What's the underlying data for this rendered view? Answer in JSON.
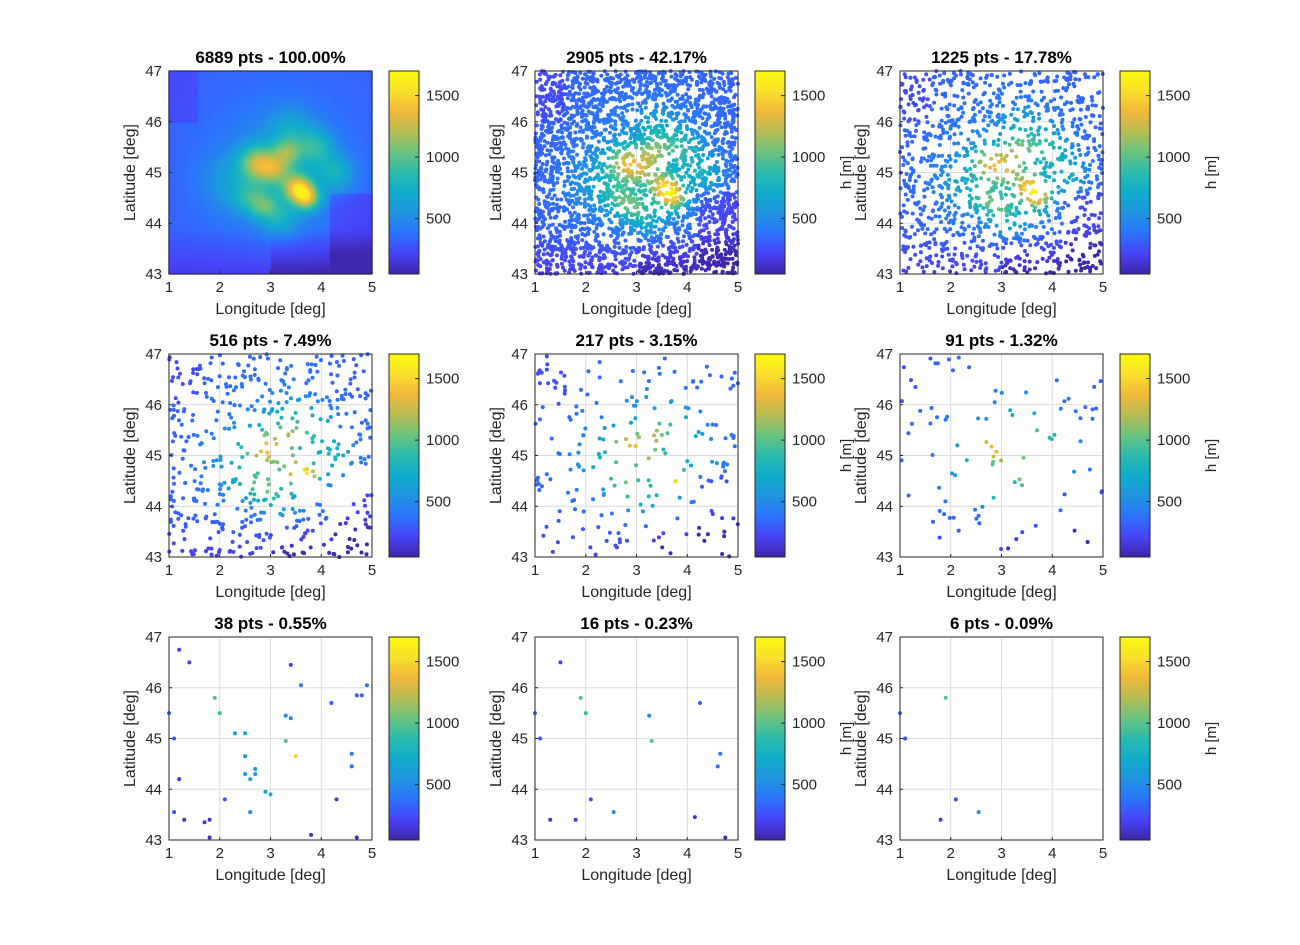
{
  "colors": {
    "background": "#ffffff",
    "colormap": "parula",
    "colormap_stops": [
      "#3e26a8",
      "#4743f8",
      "#2c73fd",
      "#1f94e0",
      "#0fadcb",
      "#2bbbad",
      "#6bc37f",
      "#b6bc53",
      "#f1b83a",
      "#f9e02b",
      "#f9fb0e"
    ]
  },
  "chart_data": [
    {
      "type": "scatter",
      "title": "6889 pts - 100.00%",
      "xlabel": "Longitude [deg]",
      "ylabel": "Latitude [deg]",
      "xlim": [
        1,
        5
      ],
      "ylim": [
        43,
        47
      ],
      "xticks": [
        "1",
        "2",
        "3",
        "4",
        "5"
      ],
      "yticks": [
        "43",
        "44",
        "45",
        "46",
        "47"
      ],
      "grid": true,
      "colorbar": {
        "label": "",
        "clim": [
          50,
          1700
        ],
        "ticks": [
          "500",
          "1000",
          "1500"
        ]
      },
      "points": 6889,
      "marker_size": 2,
      "sampled": true
    },
    {
      "type": "scatter",
      "title": "2905 pts - 42.17%",
      "xlabel": "Longitude [deg]",
      "ylabel": "Latitude [deg]",
      "xlim": [
        1,
        5
      ],
      "ylim": [
        43,
        47
      ],
      "xticks": [
        "1",
        "2",
        "3",
        "4",
        "5"
      ],
      "yticks": [
        "43",
        "44",
        "45",
        "46",
        "47"
      ],
      "grid": true,
      "colorbar": {
        "label": "h [m]",
        "clim": [
          50,
          1700
        ],
        "ticks": [
          "500",
          "1000",
          "1500"
        ]
      },
      "points": 2905,
      "marker_size": 2,
      "sampled": true
    },
    {
      "type": "scatter",
      "title": "1225 pts - 17.78%",
      "xlabel": "Longitude [deg]",
      "ylabel": "Latitude [deg]",
      "xlim": [
        1,
        5
      ],
      "ylim": [
        43,
        47
      ],
      "xticks": [
        "1",
        "2",
        "3",
        "4",
        "5"
      ],
      "yticks": [
        "43",
        "44",
        "45",
        "46",
        "47"
      ],
      "grid": true,
      "colorbar": {
        "label": "h [m]",
        "clim": [
          50,
          1700
        ],
        "ticks": [
          "500",
          "1000",
          "1500"
        ]
      },
      "points": 1225,
      "marker_size": 2,
      "sampled": true
    },
    {
      "type": "scatter",
      "title": "516 pts - 7.49%",
      "xlabel": "Longitude [deg]",
      "ylabel": "Latitude [deg]",
      "xlim": [
        1,
        5
      ],
      "ylim": [
        43,
        47
      ],
      "xticks": [
        "1",
        "2",
        "3",
        "4",
        "5"
      ],
      "yticks": [
        "43",
        "44",
        "45",
        "46",
        "47"
      ],
      "grid": true,
      "colorbar": {
        "label": "",
        "clim": [
          50,
          1700
        ],
        "ticks": [
          "500",
          "1000",
          "1500"
        ]
      },
      "points": 516,
      "marker_size": 2,
      "sampled": true
    },
    {
      "type": "scatter",
      "title": "217 pts - 3.15%",
      "xlabel": "Longitude [deg]",
      "ylabel": "Latitude [deg]",
      "xlim": [
        1,
        5
      ],
      "ylim": [
        43,
        47
      ],
      "xticks": [
        "1",
        "2",
        "3",
        "4",
        "5"
      ],
      "yticks": [
        "43",
        "44",
        "45",
        "46",
        "47"
      ],
      "grid": true,
      "colorbar": {
        "label": "h [m]",
        "clim": [
          50,
          1700
        ],
        "ticks": [
          "500",
          "1000",
          "1500"
        ]
      },
      "points": 217,
      "marker_size": 2,
      "sampled": true
    },
    {
      "type": "scatter",
      "title": "91 pts - 1.32%",
      "xlabel": "Longitude [deg]",
      "ylabel": "Latitude [deg]",
      "xlim": [
        1,
        5
      ],
      "ylim": [
        43,
        47
      ],
      "xticks": [
        "1",
        "2",
        "3",
        "4",
        "5"
      ],
      "yticks": [
        "43",
        "44",
        "45",
        "46",
        "47"
      ],
      "grid": true,
      "colorbar": {
        "label": "h [m]",
        "clim": [
          50,
          1700
        ],
        "ticks": [
          "500",
          "1000",
          "1500"
        ]
      },
      "points": 91,
      "marker_size": 2,
      "sampled": true
    },
    {
      "type": "scatter",
      "title": "38 pts - 0.55%",
      "xlabel": "Longitude [deg]",
      "ylabel": "Latitude [deg]",
      "xlim": [
        1,
        5
      ],
      "ylim": [
        43,
        47
      ],
      "xticks": [
        "1",
        "2",
        "3",
        "4",
        "5"
      ],
      "yticks": [
        "43",
        "44",
        "45",
        "46",
        "47"
      ],
      "grid": true,
      "colorbar": {
        "label": "",
        "clim": [
          50,
          1700
        ],
        "ticks": [
          "500",
          "1000",
          "1500"
        ]
      },
      "points": 38,
      "marker_size": 2,
      "sampled": false,
      "x": [
        1.0,
        1.2,
        1.4,
        1.1,
        1.2,
        1.3,
        1.8,
        1.9,
        2.0,
        2.3,
        1.8,
        2.1,
        2.5,
        2.5,
        2.6,
        2.7,
        2.7,
        2.9,
        3.0,
        2.5,
        3.3,
        3.3,
        3.4,
        3.5,
        3.4,
        3.6,
        3.8,
        4.2,
        4.3,
        4.6,
        4.6,
        4.7,
        4.8,
        4.9,
        4.7,
        1.1,
        1.7,
        2.6
      ],
      "y": [
        45.5,
        46.75,
        46.5,
        45.0,
        44.2,
        43.4,
        43.4,
        45.8,
        45.5,
        45.1,
        43.05,
        43.8,
        44.65,
        44.3,
        44.2,
        44.4,
        44.3,
        43.95,
        43.9,
        45.1,
        45.45,
        44.95,
        46.45,
        44.65,
        45.4,
        46.05,
        43.1,
        45.7,
        43.8,
        44.45,
        44.7,
        43.05,
        45.85,
        46.05,
        45.85,
        43.55,
        43.35,
        43.55
      ],
      "h": [
        380,
        200,
        200,
        250,
        150,
        120,
        120,
        1000,
        900,
        600,
        100,
        250,
        550,
        600,
        700,
        550,
        650,
        600,
        750,
        650,
        500,
        1000,
        200,
        1450,
        450,
        400,
        100,
        300,
        150,
        350,
        400,
        100,
        300,
        400,
        300,
        250,
        150,
        500
      ]
    },
    {
      "type": "scatter",
      "title": "16 pts - 0.23%",
      "xlabel": "Longitude [deg]",
      "ylabel": "Latitude [deg]",
      "xlim": [
        1,
        5
      ],
      "ylim": [
        43,
        47
      ],
      "xticks": [
        "1",
        "2",
        "3",
        "4",
        "5"
      ],
      "yticks": [
        "43",
        "44",
        "45",
        "46",
        "47"
      ],
      "grid": true,
      "colorbar": {
        "label": "h [m]",
        "clim": [
          50,
          1700
        ],
        "ticks": [
          "500",
          "1000",
          "1500"
        ]
      },
      "points": 16,
      "marker_size": 2,
      "sampled": false,
      "x": [
        1.0,
        1.1,
        1.5,
        1.9,
        2.0,
        2.1,
        1.3,
        1.8,
        2.55,
        3.25,
        3.3,
        4.15,
        4.25,
        4.6,
        4.65,
        4.75
      ],
      "y": [
        45.5,
        45.0,
        46.5,
        45.8,
        45.5,
        43.8,
        43.4,
        43.4,
        43.55,
        45.45,
        44.95,
        43.45,
        45.7,
        44.45,
        44.7,
        43.05
      ],
      "h": [
        380,
        250,
        200,
        1000,
        900,
        250,
        120,
        150,
        500,
        500,
        1000,
        150,
        300,
        350,
        400,
        100
      ]
    },
    {
      "type": "scatter",
      "title": "6 pts - 0.09%",
      "xlabel": "Longitude [deg]",
      "ylabel": "Latitude [deg]",
      "xlim": [
        1,
        5
      ],
      "ylim": [
        43,
        47
      ],
      "xticks": [
        "1",
        "2",
        "3",
        "4",
        "5"
      ],
      "yticks": [
        "43",
        "44",
        "45",
        "46",
        "47"
      ],
      "grid": true,
      "colorbar": {
        "label": "h [m]",
        "clim": [
          50,
          1700
        ],
        "ticks": [
          "500",
          "1000",
          "1500"
        ]
      },
      "points": 6,
      "marker_size": 2,
      "sampled": false,
      "x": [
        1.0,
        1.1,
        1.9,
        1.8,
        2.1,
        2.55
      ],
      "y": [
        45.5,
        45.0,
        45.8,
        43.4,
        43.8,
        43.55
      ],
      "h": [
        380,
        250,
        1000,
        150,
        250,
        500
      ]
    }
  ]
}
